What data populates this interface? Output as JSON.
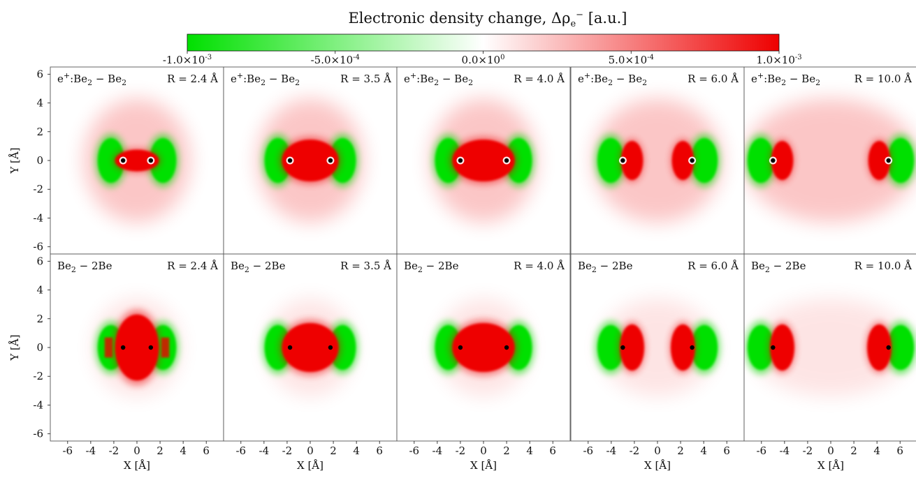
{
  "colorbar": {
    "title": "Electronic density change, Δρe− [a.u.]",
    "title_main": "Electronic density change, Δρ",
    "title_sub": "e",
    "title_sup": "−",
    "title_units": " [a.u.]",
    "min": -0.001,
    "max": 0.001,
    "colors": {
      "negative": "#00e000",
      "zero": "#ffffff",
      "positive": "#ee0000"
    },
    "ticks": [
      {
        "value": -0.001,
        "mant": "-1.0×10",
        "exp": "-3"
      },
      {
        "value": -0.0005,
        "mant": "-5.0×10",
        "exp": "-4"
      },
      {
        "value": 0,
        "mant": "0.0×10",
        "exp": "0"
      },
      {
        "value": 0.0005,
        "mant": "5.0×10",
        "exp": "-4"
      },
      {
        "value": 0.001,
        "mant": "1.0×10",
        "exp": "-3"
      }
    ]
  },
  "chart_data": {
    "type": "heatmap",
    "xlabel": "X [Å]",
    "ylabel": "Y [Å]",
    "xlim": [
      -7.5,
      7.5
    ],
    "ylim": [
      -6.5,
      6.5
    ],
    "xticks": [
      -6,
      -4,
      -2,
      0,
      2,
      4,
      6
    ],
    "yticks": [
      -6,
      -4,
      -2,
      0,
      2,
      4,
      6
    ],
    "xtick_labels": [
      "-6",
      "-4",
      "-2",
      "0",
      "2",
      "4",
      "6"
    ],
    "ytick_labels": [
      "-6",
      "-4",
      "-2",
      "0",
      "2",
      "4",
      "6"
    ],
    "R_values": [
      2.4,
      3.5,
      4.0,
      6.0,
      10.0
    ],
    "rows": [
      {
        "label_main": "e",
        "label_sup": "+",
        "label_rest": ":Be",
        "label_sub": "2",
        "label_tail": " − Be",
        "label_sub2": "2",
        "panels": [
          {
            "R_label": "R = 2.4 Å",
            "atoms_x": [
              -1.2,
              1.2
            ]
          },
          {
            "R_label": "R = 3.5 Å",
            "atoms_x": [
              -1.75,
              1.75
            ]
          },
          {
            "R_label": "R = 4.0 Å",
            "atoms_x": [
              -2.0,
              2.0
            ]
          },
          {
            "R_label": "R = 6.0 Å",
            "atoms_x": [
              -3.0,
              3.0
            ]
          },
          {
            "R_label": "R = 10.0 Å",
            "atoms_x": [
              -5.0,
              5.0
            ]
          }
        ]
      },
      {
        "label_main": "Be",
        "label_sup": "",
        "label_rest": "",
        "label_sub": "2",
        "label_tail": "  −  2Be",
        "label_sub2": "",
        "panels": [
          {
            "R_label": "R = 2.4 Å",
            "atoms_x": [
              -1.2,
              1.2
            ]
          },
          {
            "R_label": "R = 3.5 Å",
            "atoms_x": [
              -1.75,
              1.75
            ]
          },
          {
            "R_label": "R = 4.0 Å",
            "atoms_x": [
              -2.0,
              2.0
            ]
          },
          {
            "R_label": "R = 6.0 Å",
            "atoms_x": [
              -3.0,
              3.0
            ]
          },
          {
            "R_label": "R = 10.0 Å",
            "atoms_x": [
              -5.0,
              5.0
            ]
          }
        ]
      }
    ]
  }
}
